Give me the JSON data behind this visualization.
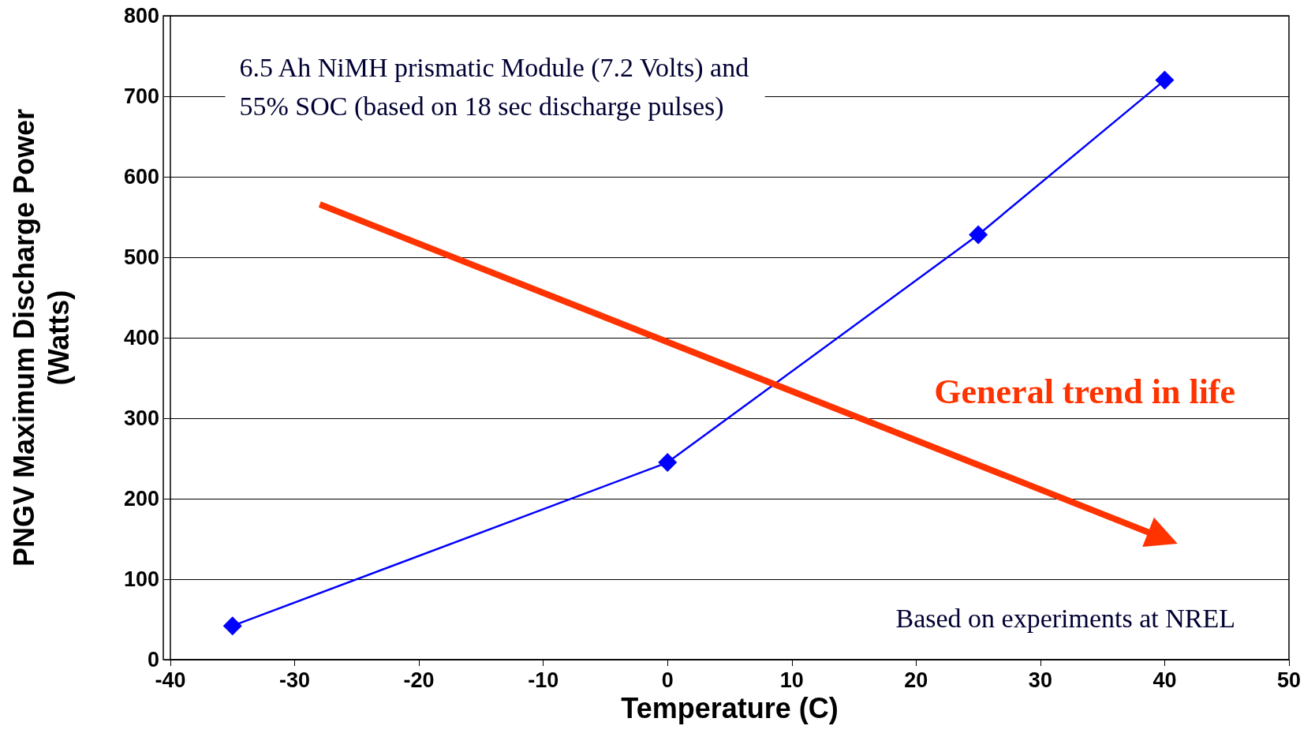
{
  "chart_data": {
    "type": "line",
    "xlabel": "Temperature (C)",
    "ylabel": "PNGV Maximum Discharge Power\n(Watts)",
    "x": [
      -35,
      0,
      25,
      40
    ],
    "series": [
      {
        "color": "#0000ff",
        "values": [
          42,
          245,
          528,
          720
        ]
      }
    ],
    "xlim": [
      -40,
      50
    ],
    "xticks": [
      -40,
      -30,
      -20,
      -10,
      0,
      10,
      20,
      30,
      40,
      50
    ],
    "ylim": [
      0,
      800
    ],
    "yticks": [
      0,
      100,
      200,
      300,
      400,
      500,
      600,
      700,
      800
    ],
    "grid": "y",
    "marker": "diamond",
    "line_style": "solid",
    "annotations": [
      "6.5 Ah NiMH prismatic Module (7.2 Volts) and\n55% SOC (based on 18 sec discharge pulses)",
      "General trend in life",
      "Based on experiments at NREL"
    ]
  }
}
